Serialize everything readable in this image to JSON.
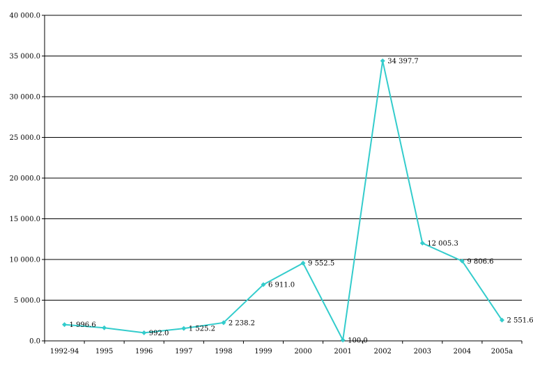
{
  "chart_data": {
    "type": "line",
    "title": "",
    "xlabel": "",
    "ylabel": "",
    "categories": [
      "1992-94",
      "1995",
      "1996",
      "1997",
      "1998",
      "1999",
      "2000",
      "2001",
      "2002",
      "2003",
      "2004",
      "2005a"
    ],
    "series": [
      {
        "values": [
          1996.6,
          1600,
          992.0,
          1525.2,
          2238.2,
          6911.0,
          9552.5,
          100.0,
          34397.7,
          12005.3,
          9806.6,
          2551.6
        ],
        "color": "#33CCCC"
      }
    ],
    "data_labels": [
      "1 996.6",
      "",
      "992.0",
      "1 525.2",
      "2 238.2",
      "6 911.0",
      "9 552.5",
      "100.0",
      "34 397.7",
      "12 005.3",
      "9 806.6",
      "2 551.6"
    ],
    "ylim": [
      0,
      40000
    ],
    "yticks": [
      0,
      5000,
      10000,
      15000,
      20000,
      25000,
      30000,
      35000,
      40000
    ],
    "ytick_labels": [
      "0.0",
      "5 000.0",
      "10 000.0",
      "15 000.0",
      "20 000.0",
      "25 000.0",
      "30 000.0",
      "35 000.0",
      "40 000.0"
    ],
    "grid": true,
    "legend": "none",
    "marker": "diamond",
    "gridline_color": "#000000",
    "background": "#ffffff"
  }
}
